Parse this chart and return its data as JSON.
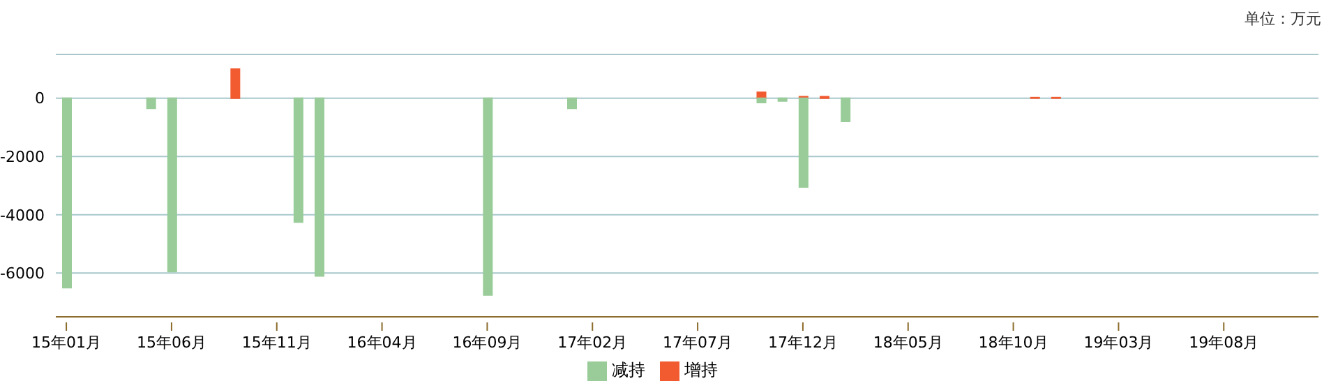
{
  "chart_data": {
    "type": "bar",
    "stacked": true,
    "categories": [
      "15年01月",
      null,
      null,
      null,
      null,
      "15年06月",
      null,
      null,
      null,
      null,
      "15年11月",
      null,
      null,
      null,
      null,
      "16年04月",
      null,
      null,
      null,
      null,
      "16年09月",
      null,
      null,
      null,
      null,
      "17年02月",
      null,
      null,
      null,
      null,
      "17年07月",
      null,
      null,
      null,
      null,
      "17年12月",
      null,
      null,
      null,
      null,
      "18年05月",
      null,
      null,
      null,
      null,
      "18年10月",
      null,
      null,
      null,
      null,
      "19年03月",
      null,
      null,
      null,
      null,
      "19年08月",
      null,
      null,
      null,
      null
    ],
    "series": [
      {
        "name": "增持",
        "color": "#f25a30",
        "values": [
          null,
          null,
          null,
          null,
          null,
          null,
          null,
          null,
          1000,
          null,
          null,
          null,
          null,
          null,
          null,
          null,
          null,
          null,
          null,
          null,
          null,
          null,
          null,
          null,
          null,
          null,
          null,
          null,
          null,
          null,
          null,
          null,
          null,
          200,
          null,
          50,
          50,
          null,
          null,
          null,
          null,
          null,
          null,
          null,
          null,
          null,
          20,
          20,
          null,
          null,
          null,
          null,
          null,
          null,
          null,
          null,
          null,
          null,
          null,
          null
        ]
      },
      {
        "name": "减持",
        "color": "#99cc99",
        "values": [
          -6500,
          null,
          null,
          null,
          -350,
          -5950,
          null,
          null,
          null,
          null,
          null,
          -4250,
          -6100,
          null,
          null,
          null,
          null,
          null,
          null,
          null,
          -6750,
          null,
          null,
          null,
          -350,
          null,
          null,
          null,
          null,
          null,
          null,
          null,
          null,
          -150,
          -100,
          -3050,
          null,
          -800,
          null,
          null,
          null,
          null,
          null,
          null,
          null,
          null,
          null,
          null,
          null,
          null,
          null,
          null,
          null,
          null,
          null,
          null,
          null,
          null,
          null,
          null
        ]
      }
    ],
    "ylim": [
      -7500,
      1500
    ],
    "yticks": [
      -6000,
      -4000,
      -2000,
      0
    ],
    "grid": "y",
    "legend": "bottom",
    "annotations": [
      "单位：万元"
    ]
  }
}
